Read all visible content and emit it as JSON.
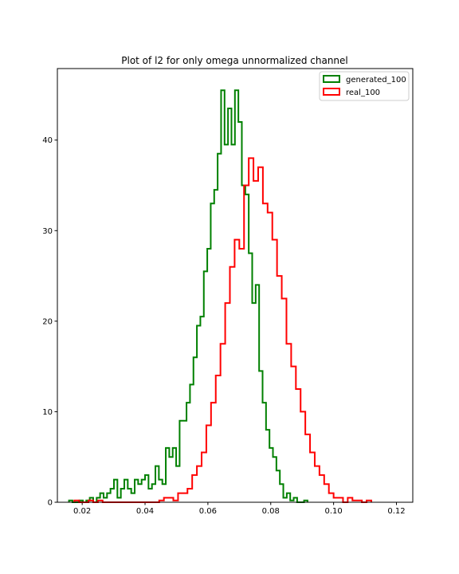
{
  "chart_data": {
    "type": "histogram",
    "title": "Plot of l2 for only omega unnormalized channel",
    "xlabel": "",
    "ylabel": "",
    "xlim": [
      0.0121,
      0.1252
    ],
    "ylim": [
      0,
      47.9
    ],
    "x_ticks": [
      {
        "value": 0.02,
        "label": "0.02"
      },
      {
        "value": 0.04,
        "label": "0.04"
      },
      {
        "value": 0.06,
        "label": "0.06"
      },
      {
        "value": 0.08,
        "label": "0.08"
      },
      {
        "value": 0.1,
        "label": "0.10"
      },
      {
        "value": 0.12,
        "label": "0.12"
      }
    ],
    "y_ticks": [
      {
        "value": 0,
        "label": "0"
      },
      {
        "value": 10,
        "label": "10"
      },
      {
        "value": 20,
        "label": "20"
      },
      {
        "value": 30,
        "label": "30"
      },
      {
        "value": 40,
        "label": "40"
      }
    ],
    "grid": false,
    "legend_position": "top-right",
    "series": [
      {
        "name": "generated_100",
        "color": "#008000",
        "x_start": 0.0158,
        "bin_width": 0.0011,
        "values": [
          0.2,
          0.0,
          0.0,
          0.2,
          0.0,
          0.2,
          0.5,
          0.0,
          0.5,
          1.0,
          0.5,
          1.0,
          1.5,
          2.5,
          0.5,
          1.5,
          2.5,
          1.5,
          1.0,
          2.5,
          2.0,
          2.5,
          3.0,
          1.5,
          2.0,
          4.0,
          2.5,
          2.0,
          6.0,
          5.0,
          6.0,
          4.0,
          9.0,
          9.0,
          11.0,
          13.0,
          16.0,
          19.5,
          20.5,
          25.5,
          28.0,
          33.0,
          34.5,
          38.5,
          45.5,
          39.5,
          43.5,
          39.5,
          45.5,
          42.0,
          35.0,
          34.0,
          27.5,
          22.0,
          24.0,
          14.5,
          11.0,
          8.0,
          6.0,
          5.0,
          3.5,
          2.0,
          0.5,
          1.0,
          0.2,
          0.5,
          0.0,
          0.0,
          0.2
        ]
      },
      {
        "name": "real_100",
        "color": "#ff0000",
        "x_start": 0.0175,
        "bin_width": 0.0015,
        "values": [
          0.2,
          0.0,
          0.0,
          0.2,
          0.0,
          0.2,
          0.0,
          0.0,
          0.0,
          0.0,
          0.0,
          0.0,
          0.0,
          0.0,
          0.0,
          0.0,
          0.0,
          0.0,
          0.2,
          0.5,
          0.5,
          0.2,
          1.0,
          1.0,
          1.5,
          3.0,
          4.0,
          5.5,
          8.5,
          11.0,
          14.0,
          17.5,
          22.0,
          26.0,
          29.0,
          28.0,
          35.0,
          38.0,
          35.5,
          37.0,
          33.0,
          32.0,
          29.0,
          25.0,
          22.5,
          17.5,
          15.0,
          12.5,
          10.0,
          7.5,
          5.5,
          4.0,
          3.0,
          2.0,
          1.0,
          0.5,
          0.5,
          0.0,
          0.5,
          0.2,
          0.2,
          0.0,
          0.2
        ]
      }
    ]
  }
}
